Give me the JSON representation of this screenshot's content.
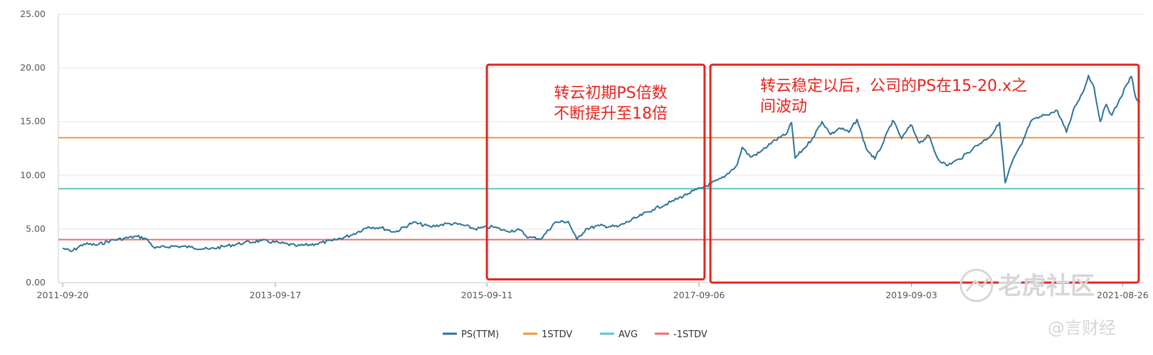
{
  "chart_data": {
    "type": "line",
    "title": "",
    "xlabel": "",
    "ylabel": "",
    "ylim": [
      0,
      25
    ],
    "y_ticks": [
      "0.00",
      "5.00",
      "10.00",
      "15.00",
      "20.00",
      "25.00"
    ],
    "x_range": [
      "2011-09-20",
      "2021-10-25"
    ],
    "x_ticks": [
      "2011-09-20",
      "2013-09-17",
      "2015-09-11",
      "2017-09-06",
      "2019-09-03",
      "2021-08-26"
    ],
    "grid": "horizontal",
    "legend_position": "bottom-center",
    "series": [
      {
        "name": "PS(TTM)",
        "color": "#2e7398",
        "points": [
          [
            "2011-09-20",
            3.2
          ],
          [
            "2011-10-20",
            2.9
          ],
          [
            "2011-12-01",
            3.6
          ],
          [
            "2012-01-15",
            3.5
          ],
          [
            "2012-03-01",
            3.9
          ],
          [
            "2012-04-15",
            4.1
          ],
          [
            "2012-06-01",
            4.3
          ],
          [
            "2012-07-01",
            4.1
          ],
          [
            "2012-08-01",
            3.2
          ],
          [
            "2012-10-01",
            3.4
          ],
          [
            "2012-12-01",
            3.3
          ],
          [
            "2013-02-01",
            3.1
          ],
          [
            "2013-04-01",
            3.4
          ],
          [
            "2013-06-01",
            3.7
          ],
          [
            "2013-08-01",
            3.9
          ],
          [
            "2013-10-01",
            3.7
          ],
          [
            "2013-12-01",
            3.4
          ],
          [
            "2014-02-01",
            3.6
          ],
          [
            "2014-04-01",
            3.9
          ],
          [
            "2014-06-01",
            4.4
          ],
          [
            "2014-08-01",
            5.2
          ],
          [
            "2014-09-15",
            5.1
          ],
          [
            "2014-11-01",
            4.7
          ],
          [
            "2015-01-01",
            5.6
          ],
          [
            "2015-03-01",
            5.2
          ],
          [
            "2015-05-01",
            5.5
          ],
          [
            "2015-06-15",
            5.4
          ],
          [
            "2015-08-01",
            5.0
          ],
          [
            "2015-10-01",
            5.2
          ],
          [
            "2015-11-15",
            4.8
          ],
          [
            "2016-01-01",
            4.9
          ],
          [
            "2016-02-01",
            4.2
          ],
          [
            "2016-03-15",
            4.1
          ],
          [
            "2016-05-01",
            5.6
          ],
          [
            "2016-06-15",
            5.7
          ],
          [
            "2016-07-15",
            4.0
          ],
          [
            "2016-08-15",
            5.0
          ],
          [
            "2016-10-01",
            5.3
          ],
          [
            "2016-12-01",
            5.2
          ],
          [
            "2017-02-01",
            6.0
          ],
          [
            "2017-04-01",
            6.8
          ],
          [
            "2017-06-01",
            7.5
          ],
          [
            "2017-08-01",
            8.3
          ],
          [
            "2017-10-01",
            9.0
          ],
          [
            "2017-12-01",
            9.8
          ],
          [
            "2018-01-15",
            11.0
          ],
          [
            "2018-02-01",
            12.6
          ],
          [
            "2018-03-01",
            11.7
          ],
          [
            "2018-04-01",
            12.1
          ],
          [
            "2018-05-15",
            13.1
          ],
          [
            "2018-07-01",
            13.8
          ],
          [
            "2018-07-20",
            14.9
          ],
          [
            "2018-08-01",
            11.6
          ],
          [
            "2018-09-01",
            12.5
          ],
          [
            "2018-10-01",
            13.5
          ],
          [
            "2018-11-01",
            15.0
          ],
          [
            "2018-12-01",
            13.8
          ],
          [
            "2019-01-01",
            14.4
          ],
          [
            "2019-02-01",
            14.0
          ],
          [
            "2019-03-01",
            15.2
          ],
          [
            "2019-04-01",
            12.5
          ],
          [
            "2019-05-01",
            11.5
          ],
          [
            "2019-06-01",
            13.2
          ],
          [
            "2019-07-01",
            15.1
          ],
          [
            "2019-08-01",
            13.4
          ],
          [
            "2019-09-01",
            14.7
          ],
          [
            "2019-10-01",
            13.0
          ],
          [
            "2019-11-01",
            13.7
          ],
          [
            "2019-12-01",
            11.6
          ],
          [
            "2020-01-01",
            10.9
          ],
          [
            "2020-02-15",
            11.5
          ],
          [
            "2020-04-01",
            12.5
          ],
          [
            "2020-06-01",
            13.7
          ],
          [
            "2020-07-01",
            14.9
          ],
          [
            "2020-07-20",
            9.3
          ],
          [
            "2020-08-15",
            11.4
          ],
          [
            "2020-09-15",
            12.9
          ],
          [
            "2020-10-15",
            15.0
          ],
          [
            "2020-12-01",
            15.6
          ],
          [
            "2021-01-15",
            16.0
          ],
          [
            "2021-02-15",
            14.0
          ],
          [
            "2021-03-15",
            16.4
          ],
          [
            "2021-04-15",
            17.9
          ],
          [
            "2021-05-01",
            19.3
          ],
          [
            "2021-05-20",
            18.2
          ],
          [
            "2021-06-10",
            15.0
          ],
          [
            "2021-07-01",
            16.6
          ],
          [
            "2021-07-20",
            15.6
          ],
          [
            "2021-08-10",
            16.7
          ],
          [
            "2021-09-10",
            18.5
          ],
          [
            "2021-09-25",
            19.2
          ],
          [
            "2021-10-10",
            17.2
          ],
          [
            "2021-10-25",
            16.8
          ]
        ]
      },
      {
        "name": "1STDV",
        "color": "#f39a32",
        "value": 13.5
      },
      {
        "name": "AVG",
        "color": "#5ec6c4",
        "value": 8.75
      },
      {
        "name": "-1STDV",
        "color": "#e96f6f",
        "value": 4.0
      }
    ],
    "annotations": [
      {
        "lines": [
          "转云初期PS倍数",
          "不断提升至18倍"
        ],
        "color": "#e8231e"
      },
      {
        "lines": [
          "转云稳定以后，公司的PS在15-20.x之",
          "间波动"
        ],
        "color": "#e8231e"
      }
    ],
    "annotation_boxes": [
      {
        "from": "2015-09-11",
        "to": "2017-09-25",
        "ylim": [
          0.3,
          20.3
        ]
      },
      {
        "from": "2017-10-15",
        "to": "2021-10-20",
        "ylim": [
          0,
          20.3
        ]
      }
    ]
  },
  "watermark": {
    "brand": "老虎社区",
    "author": "@言财经"
  }
}
